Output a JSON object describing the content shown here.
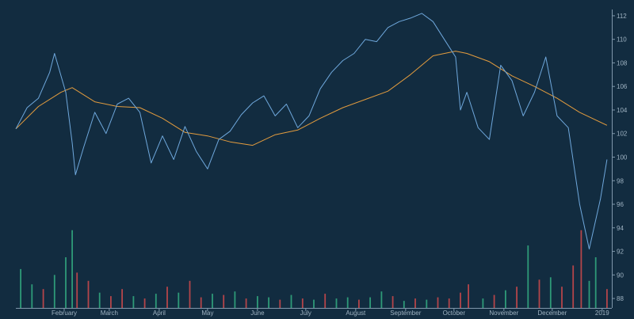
{
  "chart_data": {
    "type": "line",
    "title": "",
    "grid": false,
    "x_ticks": [
      "February",
      "March",
      "April",
      "May",
      "June",
      "July",
      "August",
      "September",
      "October",
      "November",
      "December",
      "2019"
    ],
    "y_ticks": [
      88,
      90,
      92,
      94,
      96,
      98,
      100,
      102,
      104,
      106,
      108,
      110,
      112
    ],
    "ylim": [
      87.2,
      112.8
    ],
    "series": [
      {
        "role": "price",
        "color": "#6fa8dc",
        "x": [
          "2018-01-02",
          "2018-01-09",
          "2018-01-16",
          "2018-01-23",
          "2018-01-26",
          "2018-02-02",
          "2018-02-06",
          "2018-02-08",
          "2018-02-13",
          "2018-02-20",
          "2018-02-27",
          "2018-03-06",
          "2018-03-13",
          "2018-03-20",
          "2018-03-27",
          "2018-04-03",
          "2018-04-10",
          "2018-04-17",
          "2018-04-24",
          "2018-05-01",
          "2018-05-08",
          "2018-05-15",
          "2018-05-22",
          "2018-05-29",
          "2018-06-05",
          "2018-06-12",
          "2018-06-19",
          "2018-06-26",
          "2018-07-03",
          "2018-07-10",
          "2018-07-17",
          "2018-07-24",
          "2018-07-31",
          "2018-08-07",
          "2018-08-14",
          "2018-08-21",
          "2018-08-28",
          "2018-09-04",
          "2018-09-11",
          "2018-09-18",
          "2018-09-25",
          "2018-10-02",
          "2018-10-05",
          "2018-10-09",
          "2018-10-16",
          "2018-10-23",
          "2018-10-30",
          "2018-11-06",
          "2018-11-13",
          "2018-11-20",
          "2018-11-27",
          "2018-12-04",
          "2018-12-11",
          "2018-12-18",
          "2018-12-24",
          "2018-12-31",
          "2019-01-04"
        ],
        "values": [
          102.4,
          104.2,
          105.0,
          107.2,
          108.8,
          105.5,
          101.2,
          98.5,
          100.8,
          103.8,
          102.0,
          104.5,
          105.0,
          103.8,
          99.5,
          101.8,
          99.8,
          102.6,
          100.5,
          99.0,
          101.5,
          102.2,
          103.6,
          104.6,
          105.2,
          103.5,
          104.5,
          102.5,
          103.5,
          105.8,
          107.2,
          108.2,
          108.8,
          110.0,
          109.8,
          111.0,
          111.5,
          111.8,
          112.2,
          111.5,
          110.0,
          108.5,
          104.0,
          105.5,
          102.5,
          101.5,
          107.8,
          106.5,
          103.5,
          105.5,
          108.5,
          103.5,
          102.5,
          96.0,
          92.2,
          96.5,
          99.8
        ]
      },
      {
        "role": "moving-average",
        "color": "#e39c3e",
        "x": [
          "2018-01-02",
          "2018-01-16",
          "2018-01-30",
          "2018-02-06",
          "2018-02-20",
          "2018-03-06",
          "2018-03-20",
          "2018-04-03",
          "2018-04-17",
          "2018-05-01",
          "2018-05-15",
          "2018-05-29",
          "2018-06-12",
          "2018-06-26",
          "2018-07-10",
          "2018-07-24",
          "2018-08-07",
          "2018-08-21",
          "2018-09-04",
          "2018-09-18",
          "2018-10-02",
          "2018-10-09",
          "2018-10-23",
          "2018-11-06",
          "2018-11-20",
          "2018-12-04",
          "2018-12-18",
          "2019-01-04"
        ],
        "values": [
          102.4,
          104.3,
          105.5,
          105.9,
          104.7,
          104.3,
          104.2,
          103.3,
          102.1,
          101.8,
          101.3,
          101.0,
          101.9,
          102.3,
          103.3,
          104.2,
          104.9,
          105.6,
          107.0,
          108.6,
          109.0,
          108.8,
          108.1,
          106.9,
          106.0,
          105.0,
          103.8,
          102.7
        ]
      }
    ],
    "volume": {
      "up_color": "#2e9a78",
      "down_color": "#b4454a",
      "x": [
        "2018-01-05",
        "2018-01-12",
        "2018-01-19",
        "2018-01-26",
        "2018-02-02",
        "2018-02-06",
        "2018-02-09",
        "2018-02-16",
        "2018-02-23",
        "2018-03-02",
        "2018-03-09",
        "2018-03-16",
        "2018-03-23",
        "2018-03-30",
        "2018-04-06",
        "2018-04-13",
        "2018-04-20",
        "2018-04-27",
        "2018-05-04",
        "2018-05-11",
        "2018-05-18",
        "2018-05-25",
        "2018-06-01",
        "2018-06-08",
        "2018-06-15",
        "2018-06-22",
        "2018-06-29",
        "2018-07-06",
        "2018-07-13",
        "2018-07-20",
        "2018-07-27",
        "2018-08-03",
        "2018-08-10",
        "2018-08-17",
        "2018-08-24",
        "2018-08-31",
        "2018-09-07",
        "2018-09-14",
        "2018-09-21",
        "2018-09-28",
        "2018-10-05",
        "2018-10-10",
        "2018-10-19",
        "2018-10-26",
        "2018-11-02",
        "2018-11-09",
        "2018-11-16",
        "2018-11-23",
        "2018-11-30",
        "2018-12-07",
        "2018-12-14",
        "2018-12-19",
        "2018-12-24",
        "2018-12-28",
        "2019-01-04"
      ],
      "values": [
        90.5,
        89.2,
        88.8,
        90.0,
        91.5,
        93.8,
        90.2,
        89.5,
        88.5,
        88.2,
        88.8,
        88.2,
        88.0,
        88.4,
        89.0,
        88.5,
        89.5,
        88.1,
        88.4,
        88.3,
        88.6,
        88.0,
        88.2,
        88.1,
        87.9,
        88.3,
        88.0,
        87.9,
        88.4,
        88.0,
        88.1,
        87.9,
        88.1,
        88.6,
        88.2,
        87.8,
        88.0,
        87.9,
        88.1,
        88.0,
        88.5,
        89.2,
        88.0,
        88.3,
        88.7,
        89.0,
        92.5,
        89.6,
        89.8,
        89.0,
        90.8,
        93.8,
        89.5,
        91.5,
        88.8
      ],
      "direction": [
        "up",
        "up",
        "down",
        "up",
        "up",
        "up",
        "down",
        "down",
        "up",
        "down",
        "down",
        "up",
        "down",
        "up",
        "down",
        "up",
        "down",
        "down",
        "up",
        "down",
        "up",
        "down",
        "up",
        "up",
        "down",
        "up",
        "down",
        "up",
        "down",
        "up",
        "up",
        "down",
        "up",
        "up",
        "down",
        "up",
        "down",
        "up",
        "down",
        "down",
        "down",
        "down",
        "up",
        "down",
        "up",
        "down",
        "up",
        "down",
        "up",
        "down",
        "down",
        "down",
        "up",
        "up",
        "down"
      ]
    }
  }
}
